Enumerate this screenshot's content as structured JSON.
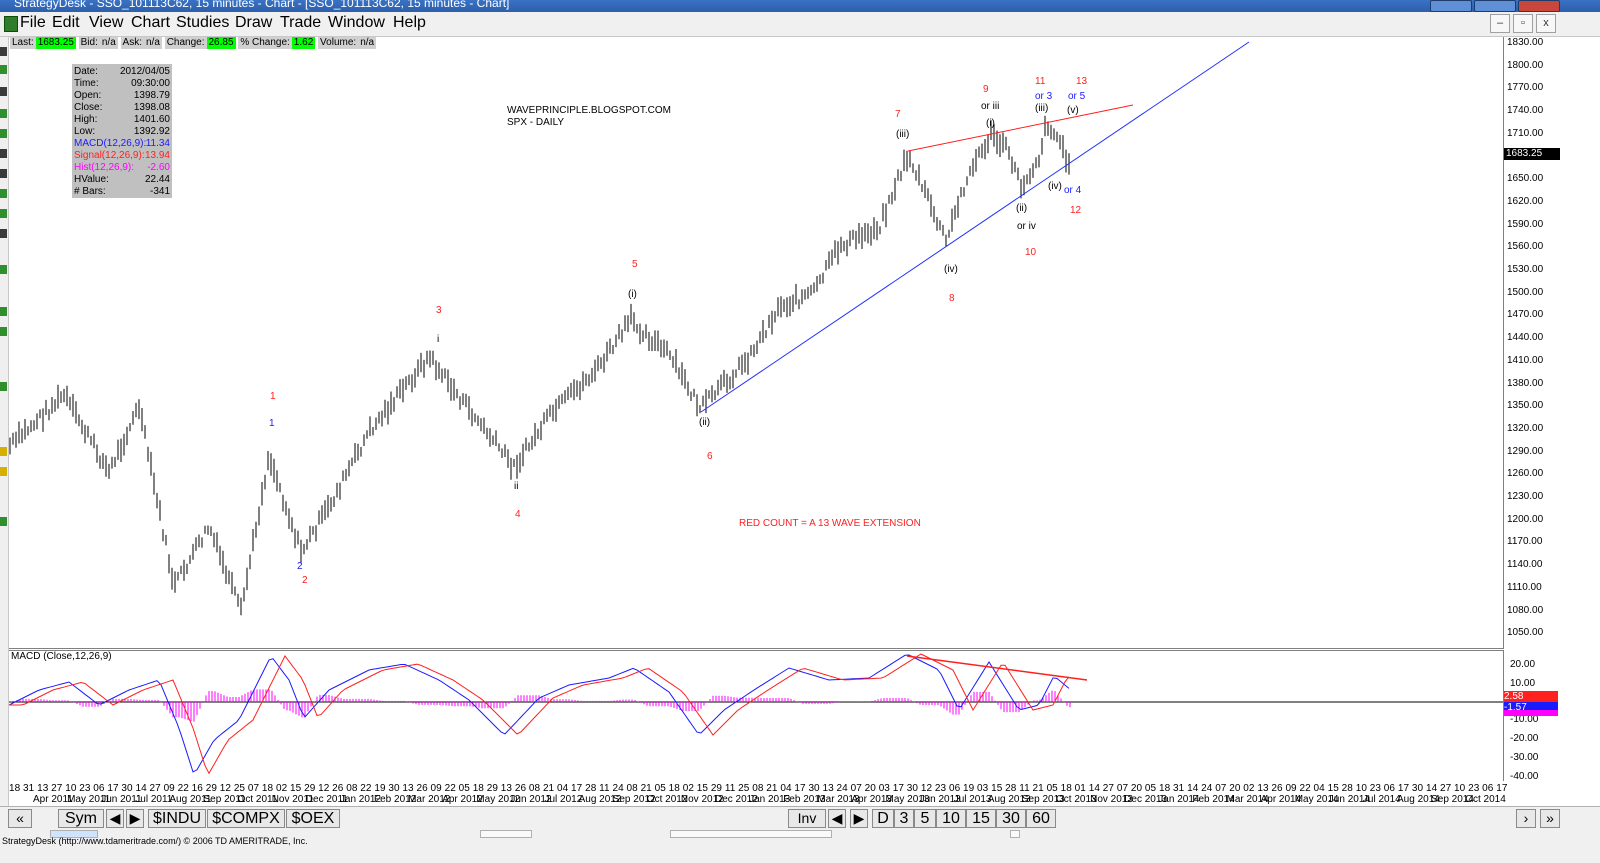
{
  "app": {
    "title": "StrategyDesk - SSO_101113C62, 15 minutes - Chart - [SSO_101113C62, 15 minutes - Chart]",
    "menu": [
      "File",
      "Edit",
      "View",
      "Chart",
      "Studies",
      "Draw",
      "Trade",
      "Window",
      "Help"
    ],
    "mdi_buttons": [
      "–",
      "▫",
      "x"
    ]
  },
  "quote": {
    "last_label": "Last:",
    "last": "1683.25",
    "bid_label": "Bid:",
    "bid": "n/a",
    "ask_label": "Ask:",
    "ask": "n/a",
    "change_label": "Change:",
    "change": "26.85",
    "pct_label": "% Change:",
    "pct": "1.62",
    "volume_label": "Volume:",
    "volume": "n/a"
  },
  "info": [
    {
      "k": "Date:",
      "v": "2012/04/05",
      "color": "#000000"
    },
    {
      "k": "Time:",
      "v": "09:30:00",
      "color": "#000000"
    },
    {
      "k": "Open:",
      "v": "1398.79",
      "color": "#000000"
    },
    {
      "k": "Close:",
      "v": "1398.08",
      "color": "#000000"
    },
    {
      "k": "High:",
      "v": "1401.60",
      "color": "#000000"
    },
    {
      "k": "Low:",
      "v": "1392.92",
      "color": "#000000"
    },
    {
      "k": "MACD(12,26,9):",
      "v": "11.34",
      "color": "#1a1aff"
    },
    {
      "k": "Signal(12,26,9):",
      "v": "13.94",
      "color": "#ff2020"
    },
    {
      "k": "Hist(12,26,9):",
      "v": "-2.60",
      "color": "#ff00ff"
    },
    {
      "k": "HValue:",
      "v": "22.44",
      "color": "#000000"
    },
    {
      "k": "# Bars:",
      "v": "-341",
      "color": "#000000"
    }
  ],
  "watermark": [
    "WAVEPRINCIPLE.BLOGSPOT.COM",
    "SPX - DAILY"
  ],
  "note": "RED COUNT = A 13 WAVE EXTENSION",
  "price_axis": [
    "1830.00",
    "1800.00",
    "1770.00",
    "1740.00",
    "1710.00",
    "1680.00",
    "1650.00",
    "1620.00",
    "1590.00",
    "1560.00",
    "1530.00",
    "1500.00",
    "1470.00",
    "1440.00",
    "1410.00",
    "1380.00",
    "1350.00",
    "1320.00",
    "1290.00",
    "1260.00",
    "1230.00",
    "1200.00",
    "1170.00",
    "1140.00",
    "1110.00",
    "1080.00",
    "1050.00"
  ],
  "current_price": "1683.25",
  "macd_title": "MACD (Close,12,26,9)",
  "macd_axis": [
    "20.00",
    "10.00",
    "-10.00",
    "-20.00",
    "-30.00",
    "-40.00"
  ],
  "macd_badges": [
    "2.58",
    "-1.57"
  ],
  "wave_labels": [
    {
      "t": "1",
      "c": "#ff2020"
    },
    {
      "t": "1",
      "c": "#1a1aff"
    },
    {
      "t": "2",
      "c": "#1a1aff"
    },
    {
      "t": "2",
      "c": "#ff2020"
    },
    {
      "t": "3",
      "c": "#ff2020"
    },
    {
      "t": "i",
      "c": "#000000"
    },
    {
      "t": "ii",
      "c": "#000000"
    },
    {
      "t": "4",
      "c": "#ff2020"
    },
    {
      "t": "5",
      "c": "#ff2020"
    },
    {
      "t": "(i)",
      "c": "#000000"
    },
    {
      "t": "(ii)",
      "c": "#000000"
    },
    {
      "t": "6",
      "c": "#ff2020"
    },
    {
      "t": "7",
      "c": "#ff2020"
    },
    {
      "t": "(iii)",
      "c": "#000000"
    },
    {
      "t": "(iv)",
      "c": "#000000"
    },
    {
      "t": "8",
      "c": "#ff2020"
    },
    {
      "t": "9",
      "c": "#ff2020"
    },
    {
      "t": "or iii",
      "c": "#000000"
    },
    {
      "t": "(i)",
      "c": "#000000"
    },
    {
      "t": "(ii)",
      "c": "#000000"
    },
    {
      "t": "or iv",
      "c": "#000000"
    },
    {
      "t": "10",
      "c": "#ff2020"
    },
    {
      "t": "11",
      "c": "#ff2020"
    },
    {
      "t": "or 3",
      "c": "#1a1aff"
    },
    {
      "t": "(iii)",
      "c": "#000000"
    },
    {
      "t": "(iv)",
      "c": "#000000"
    },
    {
      "t": "or 4",
      "c": "#1a1aff"
    },
    {
      "t": "12",
      "c": "#ff2020"
    },
    {
      "t": "13",
      "c": "#ff2020"
    },
    {
      "t": "or 5",
      "c": "#1a1aff"
    },
    {
      "t": "(v)",
      "c": "#000000"
    }
  ],
  "x_days": "18 31 13 27 10 23 06 17 30 14 27 09 22 16 29 12 25 07 18 02 15 29 12 26 08 22 19 30 13 26 09 22 05 18 29 13 26 08 21 04 17 28 11 24 08 21 05 18 02 15 29 11 25 08 21 04 17 30 13 24 07 20 03 17 30 12 23 06 19 03 15 28 11 21 05 18 01 14 27 07 20 05 18 31 14 24 07 20 02 13 26 09 22 04 15 28 10 23 06 17 30 14 27 10 23 06 17",
  "x_months": [
    "Apr 2011",
    "May 2011",
    "Jun 2011",
    "Jul 2011",
    "Aug 2011",
    "Sep 2011",
    "Oct 2011",
    "Nov 2011",
    "Dec 2011",
    "Jan 2012",
    "Feb 2012",
    "Mar 2012",
    "Apr 2012",
    "May 2012",
    "Jun 2012",
    "Jul 2012",
    "Aug 2012",
    "Sep 2012",
    "Oct 2012",
    "Nov 2012",
    "Dec 2012",
    "Jan 2013",
    "Feb 2013",
    "Mar 2013",
    "Apr 2013",
    "May 2013",
    "Jun 2013",
    "Jul 2013",
    "Aug 2013",
    "Sep 2013",
    "Oct 2013",
    "Nov 2013",
    "Dec 2013",
    "Jan 2014",
    "Feb 2014",
    "Mar 2014",
    "Apr 2014",
    "May 2014",
    "Jun 2014",
    "Jul 2014",
    "Aug 2014",
    "Sep 2014",
    "Oct 2014"
  ],
  "bottom": {
    "sym": "Sym",
    "tabs": [
      "$INDU",
      "$COMPX",
      "$OEX"
    ],
    "inv": "Inv",
    "periods": [
      "D",
      "3",
      "5",
      "10",
      "15",
      "30",
      "60"
    ]
  },
  "status": "StrategyDesk (http://www.tdameritrade.com/) © 2006 TD AMERITRADE, Inc."
}
